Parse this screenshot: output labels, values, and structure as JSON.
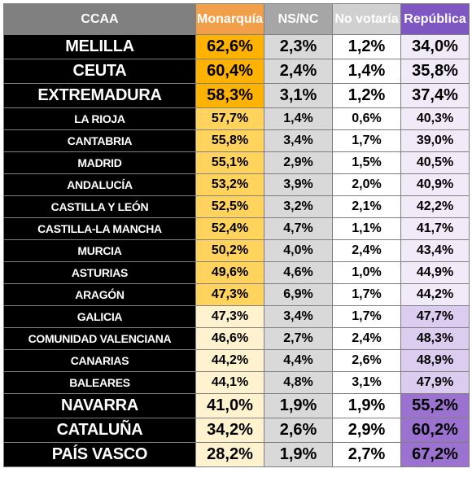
{
  "chart_data": {
    "type": "table",
    "columns": [
      "CCAA",
      "Monarquía",
      "NS/NC",
      "No votaría",
      "República"
    ],
    "header_colors": [
      "#808080",
      "#f29f4a",
      "#a6a6a6",
      "#d0d0d0",
      "#7e57c2"
    ],
    "rows": [
      {
        "region": "MELILLA",
        "monarquia": "62,6%",
        "nsnc": "2,3%",
        "no_votaria": "1,2%",
        "republica": "34,0%",
        "size": "big",
        "mon_color": "#ffb300",
        "rep_color": "#f1eaf8"
      },
      {
        "region": "CEUTA",
        "monarquia": "60,4%",
        "nsnc": "2,4%",
        "no_votaria": "1,4%",
        "republica": "35,8%",
        "size": "big",
        "mon_color": "#ffb300",
        "rep_color": "#f1eaf8"
      },
      {
        "region": "EXTREMADURA",
        "monarquia": "58,3%",
        "nsnc": "3,1%",
        "no_votaria": "1,2%",
        "republica": "37,4%",
        "size": "big",
        "mon_color": "#ffb300",
        "rep_color": "#f1eaf8"
      },
      {
        "region": "LA RIOJA",
        "monarquia": "57,7%",
        "nsnc": "1,4%",
        "no_votaria": "0,6%",
        "republica": "40,3%",
        "size": "small",
        "mon_color": "#ffd35c",
        "rep_color": "#f1eaf8"
      },
      {
        "region": "CANTABRIA",
        "monarquia": "55,8%",
        "nsnc": "3,4%",
        "no_votaria": "1,7%",
        "republica": "39,0%",
        "size": "small",
        "mon_color": "#ffd35c",
        "rep_color": "#f1eaf8"
      },
      {
        "region": "MADRID",
        "monarquia": "55,1%",
        "nsnc": "2,9%",
        "no_votaria": "1,5%",
        "republica": "40,5%",
        "size": "small",
        "mon_color": "#ffd35c",
        "rep_color": "#f1eaf8"
      },
      {
        "region": "ANDALUCÍA",
        "monarquia": "53,2%",
        "nsnc": "3,9%",
        "no_votaria": "2,0%",
        "republica": "40,9%",
        "size": "small",
        "mon_color": "#ffd35c",
        "rep_color": "#f1eaf8"
      },
      {
        "region": "CASTILLA Y LEÓN",
        "monarquia": "52,5%",
        "nsnc": "3,2%",
        "no_votaria": "2,1%",
        "republica": "42,2%",
        "size": "small",
        "mon_color": "#ffd35c",
        "rep_color": "#f1eaf8"
      },
      {
        "region": "CASTILLA-LA MANCHA",
        "monarquia": "52,4%",
        "nsnc": "4,7%",
        "no_votaria": "1,1%",
        "republica": "41,7%",
        "size": "small",
        "mon_color": "#ffd35c",
        "rep_color": "#f1eaf8"
      },
      {
        "region": "MURCIA",
        "monarquia": "50,2%",
        "nsnc": "4,0%",
        "no_votaria": "2,4%",
        "republica": "43,4%",
        "size": "small",
        "mon_color": "#ffd35c",
        "rep_color": "#f1eaf8"
      },
      {
        "region": "ASTURIAS",
        "monarquia": "49,6%",
        "nsnc": "4,6%",
        "no_votaria": "1,0%",
        "republica": "44,9%",
        "size": "small",
        "mon_color": "#ffd35c",
        "rep_color": "#f1eaf8"
      },
      {
        "region": "ARAGÓN",
        "monarquia": "47,3%",
        "nsnc": "6,9%",
        "no_votaria": "1,7%",
        "republica": "44,2%",
        "size": "small",
        "mon_color": "#ffd35c",
        "rep_color": "#f1eaf8"
      },
      {
        "region": "GALICIA",
        "monarquia": "47,3%",
        "nsnc": "3,4%",
        "no_votaria": "1,7%",
        "republica": "47,7%",
        "size": "small",
        "mon_color": "#fff3cf",
        "rep_color": "#dccdf0"
      },
      {
        "region": "COMUNIDAD VALENCIANA",
        "monarquia": "46,6%",
        "nsnc": "2,7%",
        "no_votaria": "2,4%",
        "republica": "48,3%",
        "size": "small",
        "mon_color": "#fff3cf",
        "rep_color": "#dccdf0"
      },
      {
        "region": "CANARIAS",
        "monarquia": "44,2%",
        "nsnc": "4,4%",
        "no_votaria": "2,6%",
        "republica": "48,9%",
        "size": "small",
        "mon_color": "#fff3cf",
        "rep_color": "#dccdf0"
      },
      {
        "region": "BALEARES",
        "monarquia": "44,1%",
        "nsnc": "4,8%",
        "no_votaria": "3,1%",
        "republica": "47,9%",
        "size": "small",
        "mon_color": "#fff3cf",
        "rep_color": "#dccdf0"
      },
      {
        "region": "NAVARRA",
        "monarquia": "41,0%",
        "nsnc": "1,9%",
        "no_votaria": "1,9%",
        "republica": "55,2%",
        "size": "big",
        "mon_color": "#fff3cf",
        "rep_color": "#9b72d0"
      },
      {
        "region": "CATALUÑA",
        "monarquia": "34,2%",
        "nsnc": "2,6%",
        "no_votaria": "2,9%",
        "republica": "60,2%",
        "size": "big",
        "mon_color": "#fff3cf",
        "rep_color": "#9b72d0"
      },
      {
        "region": "PAÍS VASCO",
        "monarquia": "28,2%",
        "nsnc": "1,9%",
        "no_votaria": "2,7%",
        "republica": "67,2%",
        "size": "big",
        "mon_color": "#fff3cf",
        "rep_color": "#9b72d0"
      }
    ]
  }
}
